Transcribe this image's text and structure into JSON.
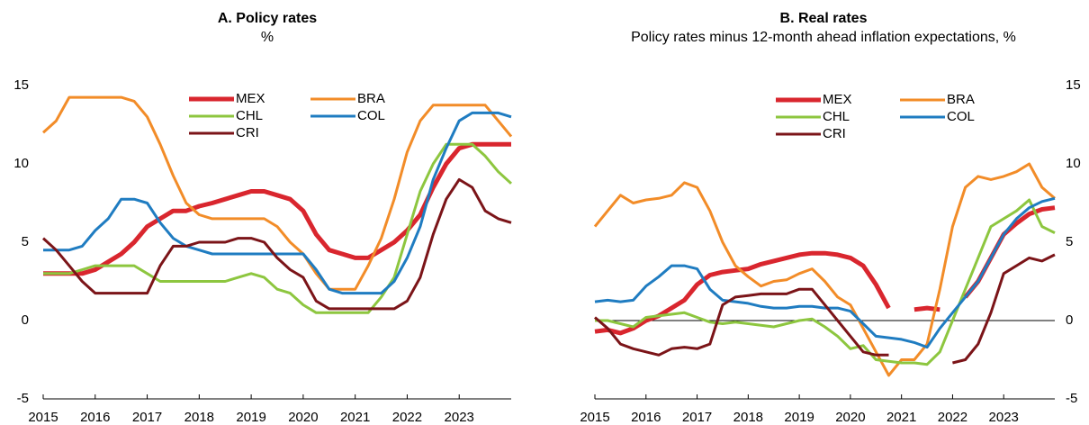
{
  "chart_data": [
    {
      "type": "line",
      "title": "A. Policy rates",
      "subtitle": "%",
      "x": [
        2015,
        2015.25,
        2015.5,
        2015.75,
        2016,
        2016.25,
        2016.5,
        2016.75,
        2017,
        2017.25,
        2017.5,
        2017.75,
        2018,
        2018.25,
        2018.5,
        2018.75,
        2019,
        2019.25,
        2019.5,
        2019.75,
        2020,
        2020.25,
        2020.5,
        2020.75,
        2021,
        2021.25,
        2021.5,
        2021.75,
        2022,
        2022.25,
        2022.5,
        2022.75,
        2023,
        2023.25,
        2023.5,
        2023.75,
        2024
      ],
      "series": [
        {
          "name": "MEX",
          "color": "#d9262e",
          "width": 5,
          "values": [
            3.0,
            3.0,
            3.0,
            3.0,
            3.25,
            3.75,
            4.25,
            5.0,
            6.0,
            6.5,
            7.0,
            7.0,
            7.3,
            7.5,
            7.75,
            8.0,
            8.25,
            8.25,
            8.0,
            7.75,
            7.0,
            5.5,
            4.5,
            4.25,
            4.0,
            4.0,
            4.5,
            5.0,
            5.75,
            6.75,
            8.5,
            10.0,
            11.0,
            11.25,
            11.25,
            11.25,
            11.25
          ]
        },
        {
          "name": "BRA",
          "color": "#f28c28",
          "width": 3,
          "values": [
            12.0,
            12.75,
            14.25,
            14.25,
            14.25,
            14.25,
            14.25,
            14.0,
            13.0,
            11.25,
            9.25,
            7.5,
            6.75,
            6.5,
            6.5,
            6.5,
            6.5,
            6.5,
            6.0,
            5.0,
            4.25,
            3.0,
            2.0,
            2.0,
            2.0,
            3.5,
            5.25,
            7.75,
            10.75,
            12.75,
            13.75,
            13.75,
            13.75,
            13.75,
            13.75,
            12.75,
            11.75
          ]
        },
        {
          "name": "CHL",
          "color": "#8dc63f",
          "width": 3,
          "values": [
            3.0,
            3.0,
            3.0,
            3.25,
            3.5,
            3.5,
            3.5,
            3.5,
            3.0,
            2.5,
            2.5,
            2.5,
            2.5,
            2.5,
            2.5,
            2.75,
            3.0,
            2.75,
            2.0,
            1.75,
            1.0,
            0.5,
            0.5,
            0.5,
            0.5,
            0.5,
            1.5,
            2.75,
            5.5,
            8.25,
            10.0,
            11.25,
            11.25,
            11.25,
            10.5,
            9.5,
            8.75
          ]
        },
        {
          "name": "COL",
          "color": "#1f7cc1",
          "width": 3,
          "values": [
            4.5,
            4.5,
            4.5,
            4.75,
            5.75,
            6.5,
            7.75,
            7.75,
            7.5,
            6.25,
            5.25,
            4.75,
            4.5,
            4.25,
            4.25,
            4.25,
            4.25,
            4.25,
            4.25,
            4.25,
            4.25,
            3.25,
            2.0,
            1.75,
            1.75,
            1.75,
            1.75,
            2.5,
            4.0,
            6.0,
            9.0,
            11.0,
            12.75,
            13.25,
            13.25,
            13.25,
            13.0
          ]
        },
        {
          "name": "CRI",
          "color": "#7b1418",
          "width": 3,
          "values": [
            5.25,
            4.5,
            3.5,
            2.5,
            1.75,
            1.75,
            1.75,
            1.75,
            1.75,
            3.5,
            4.75,
            4.75,
            5.0,
            5.0,
            5.0,
            5.25,
            5.25,
            5.0,
            4.0,
            3.25,
            2.75,
            1.25,
            0.75,
            0.75,
            0.75,
            0.75,
            0.75,
            0.75,
            1.25,
            2.75,
            5.5,
            7.75,
            9.0,
            8.5,
            7.0,
            6.5,
            6.25
          ]
        }
      ],
      "xlim": [
        2015,
        2024
      ],
      "xticks": [
        2015,
        2016,
        2017,
        2018,
        2019,
        2020,
        2021,
        2022,
        2023
      ],
      "ylim": [
        -5,
        15
      ],
      "yticks": [
        -5,
        0,
        5,
        10,
        15
      ],
      "yaxis_side": "left",
      "zero_line": false
    },
    {
      "type": "line",
      "title": "B. Real rates",
      "subtitle": "Policy rates minus 12-month ahead inflation expectations, %",
      "x": [
        2015,
        2015.25,
        2015.5,
        2015.75,
        2016,
        2016.25,
        2016.5,
        2016.75,
        2017,
        2017.25,
        2017.5,
        2017.75,
        2018,
        2018.25,
        2018.5,
        2018.75,
        2019,
        2019.25,
        2019.5,
        2019.75,
        2020,
        2020.25,
        2020.5,
        2020.75,
        2021,
        2021.25,
        2021.5,
        2021.75,
        2022,
        2022.25,
        2022.5,
        2022.75,
        2023,
        2023.25,
        2023.5,
        2023.75,
        2024
      ],
      "series": [
        {
          "name": "MEX",
          "color": "#d9262e",
          "width": 5,
          "values": [
            -0.7,
            -0.6,
            -0.8,
            -0.5,
            0.0,
            0.3,
            0.8,
            1.3,
            2.3,
            2.9,
            3.1,
            3.2,
            3.3,
            3.6,
            3.8,
            4.0,
            4.2,
            4.3,
            4.3,
            4.2,
            4.0,
            3.5,
            2.3,
            0.8,
            null,
            0.7,
            0.8,
            0.7,
            null,
            1.5,
            2.5,
            4.0,
            5.5,
            6.2,
            6.8,
            7.1,
            7.2
          ]
        },
        {
          "name": "BRA",
          "color": "#f28c28",
          "width": 3,
          "values": [
            6.0,
            7.0,
            8.0,
            7.5,
            7.7,
            7.8,
            8.0,
            8.8,
            8.5,
            7.0,
            5.0,
            3.5,
            2.8,
            2.2,
            2.5,
            2.6,
            3.0,
            3.3,
            2.5,
            1.5,
            1.0,
            -0.5,
            -2.0,
            -3.5,
            -2.5,
            -2.5,
            -1.5,
            2.0,
            6.0,
            8.5,
            9.2,
            9.0,
            9.2,
            9.5,
            10.0,
            8.5,
            7.8
          ]
        },
        {
          "name": "CHL",
          "color": "#8dc63f",
          "width": 3,
          "values": [
            0.0,
            0.0,
            -0.2,
            -0.4,
            0.2,
            0.3,
            0.4,
            0.5,
            0.2,
            -0.1,
            -0.2,
            -0.1,
            -0.2,
            -0.3,
            -0.4,
            -0.2,
            0.0,
            0.1,
            -0.4,
            -1.0,
            -1.8,
            -1.6,
            -2.5,
            -2.6,
            -2.7,
            -2.7,
            -2.8,
            -2.0,
            0.0,
            2.0,
            4.0,
            6.0,
            6.5,
            7.0,
            7.7,
            6.0,
            5.6
          ]
        },
        {
          "name": "COL",
          "color": "#1f7cc1",
          "width": 3,
          "values": [
            1.2,
            1.3,
            1.2,
            1.3,
            2.2,
            2.8,
            3.5,
            3.5,
            3.3,
            2.0,
            1.3,
            1.2,
            1.1,
            0.9,
            0.8,
            0.8,
            0.9,
            0.9,
            0.8,
            0.8,
            0.6,
            -0.2,
            -1.0,
            -1.1,
            -1.2,
            -1.4,
            -1.7,
            -0.5,
            0.5,
            1.5,
            2.5,
            4.0,
            5.5,
            6.5,
            7.2,
            7.6,
            7.8
          ]
        },
        {
          "name": "CRI",
          "color": "#7b1418",
          "width": 3,
          "values": [
            0.2,
            -0.5,
            -1.5,
            -1.8,
            -2.0,
            -2.2,
            -1.8,
            -1.7,
            -1.8,
            -1.5,
            1.0,
            1.5,
            1.6,
            1.7,
            1.7,
            1.7,
            2.0,
            2.0,
            1.0,
            0.0,
            -1.0,
            -2.0,
            -2.2,
            -2.2,
            null,
            null,
            null,
            null,
            -2.7,
            -2.5,
            -1.5,
            0.5,
            3.0,
            3.5,
            4.0,
            3.8,
            4.2
          ]
        }
      ],
      "xlim": [
        2015,
        2024
      ],
      "xticks": [
        2015,
        2016,
        2017,
        2018,
        2019,
        2020,
        2021,
        2022,
        2023
      ],
      "ylim": [
        -5,
        15
      ],
      "yticks": [
        -5,
        0,
        5,
        10,
        15
      ],
      "yaxis_side": "right",
      "zero_line": true
    }
  ]
}
